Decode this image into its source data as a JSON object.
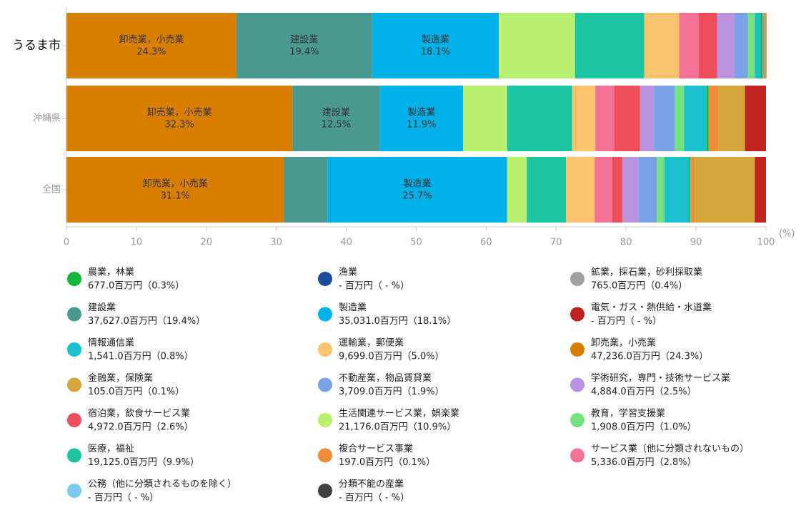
{
  "chart_data": {
    "type": "stacked_bar_horizontal",
    "categories": [
      "うるま市",
      "沖縄県",
      "全国"
    ],
    "xlim": [
      0,
      100
    ],
    "xticks": [
      0,
      10,
      20,
      30,
      40,
      50,
      60,
      70,
      80,
      90,
      100
    ],
    "x_unit": "(%)",
    "series": [
      {
        "name": "農業，林業",
        "color": "#12b83a",
        "values": [
          0.3,
          0.3,
          0.2
        ],
        "legend_label": "677.0百万円（0.3%）"
      },
      {
        "name": "漁業",
        "color": "#1d4b9a",
        "values": [
          null,
          null,
          null
        ],
        "legend_label": "- 百万円（ - %）"
      },
      {
        "name": "鉱業，採石業，砂利採取業",
        "color": "#a0a0a0",
        "values": [
          0.4,
          null,
          0.1
        ],
        "legend_label": "765.0百万円（0.4%）"
      },
      {
        "name": "建設業",
        "color": "#4a9990",
        "values": [
          19.4,
          12.5,
          6.2
        ],
        "value_labels": [
          "19.4%",
          "12.5%",
          null
        ],
        "legend_label": "37,627.0百万円（19.4%）"
      },
      {
        "name": "製造業",
        "color": "#00b0e8",
        "values": [
          18.1,
          11.9,
          25.7
        ],
        "value_labels": [
          "18.1%",
          "11.9%",
          "25.7%"
        ],
        "legend_label": "35,031.0百万円（18.1%）"
      },
      {
        "name": "電気・ガス・熱供給・水道業",
        "color": "#c0231f",
        "values": [
          null,
          3.0,
          1.6
        ],
        "legend_label": "- 百万円（ - %）"
      },
      {
        "name": "情報通信業",
        "color": "#19c1cc",
        "values": [
          0.8,
          3.2,
          3.5
        ],
        "legend_label": "1,541.0百万円（0.8%）"
      },
      {
        "name": "運輸業，郵便業",
        "color": "#f9c46c",
        "values": [
          5.0,
          3.3,
          4.1
        ],
        "legend_label": "9,699.0百万円（5.0%）"
      },
      {
        "name": "卸売業，小売業",
        "color": "#d97f00",
        "values": [
          24.3,
          32.3,
          31.1
        ],
        "value_labels": [
          "24.3%",
          "32.3%",
          "31.1%"
        ],
        "legend_label": "47,236.0百万円（24.3%）"
      },
      {
        "name": "金融業，保険業",
        "color": "#d3a73a",
        "values": [
          0.1,
          3.8,
          8.6
        ],
        "legend_label": "105.0百万円（0.1%）"
      },
      {
        "name": "不動産業，物品賃貸業",
        "color": "#79a3e6",
        "values": [
          1.9,
          3.0,
          2.6
        ],
        "legend_label": "3,709.0百万円（1.9%）"
      },
      {
        "name": "学術研究，専門・技術サービス業",
        "color": "#b993e0",
        "values": [
          2.5,
          2.0,
          2.3
        ],
        "legend_label": "4,884.0百万円（2.5%）"
      },
      {
        "name": "宿泊業，飲食サービス業",
        "color": "#ee4e5a",
        "values": [
          2.6,
          3.7,
          1.5
        ],
        "legend_label": "4,972.0百万円（2.6%）"
      },
      {
        "name": "生活関連サービス業，娯楽業",
        "color": "#b9f06e",
        "values": [
          10.9,
          6.3,
          2.8
        ],
        "legend_label": "21,176.0百万円（10.9%）"
      },
      {
        "name": "教育，学習支援業",
        "color": "#74e37f",
        "values": [
          1.0,
          1.3,
          1.1
        ],
        "legend_label": "1,908.0百万円（1.0%）"
      },
      {
        "name": "医療，福祉",
        "color": "#1bc59f",
        "values": [
          9.9,
          9.3,
          5.6
        ],
        "legend_label": "19,125.0百万円（9.9%）"
      },
      {
        "name": "複合サービス事業",
        "color": "#ef8c37",
        "values": [
          0.1,
          1.4,
          0.5
        ],
        "legend_label": "197.0百万円（0.1%）"
      },
      {
        "name": "サービス業（他に分類されないもの）",
        "color": "#f47196",
        "values": [
          2.8,
          2.7,
          2.5
        ],
        "legend_label": "5,336.0百万円（2.8%）"
      },
      {
        "name": "公務（他に分類されるものを除く）",
        "color": "#7dcdf3",
        "values": [
          null,
          null,
          null
        ],
        "legend_label": "- 百万円（ - %）"
      },
      {
        "name": "分類不能の産業",
        "color": "#404040",
        "values": [
          null,
          null,
          null
        ],
        "legend_label": "- 百万円（ - %）"
      }
    ]
  }
}
